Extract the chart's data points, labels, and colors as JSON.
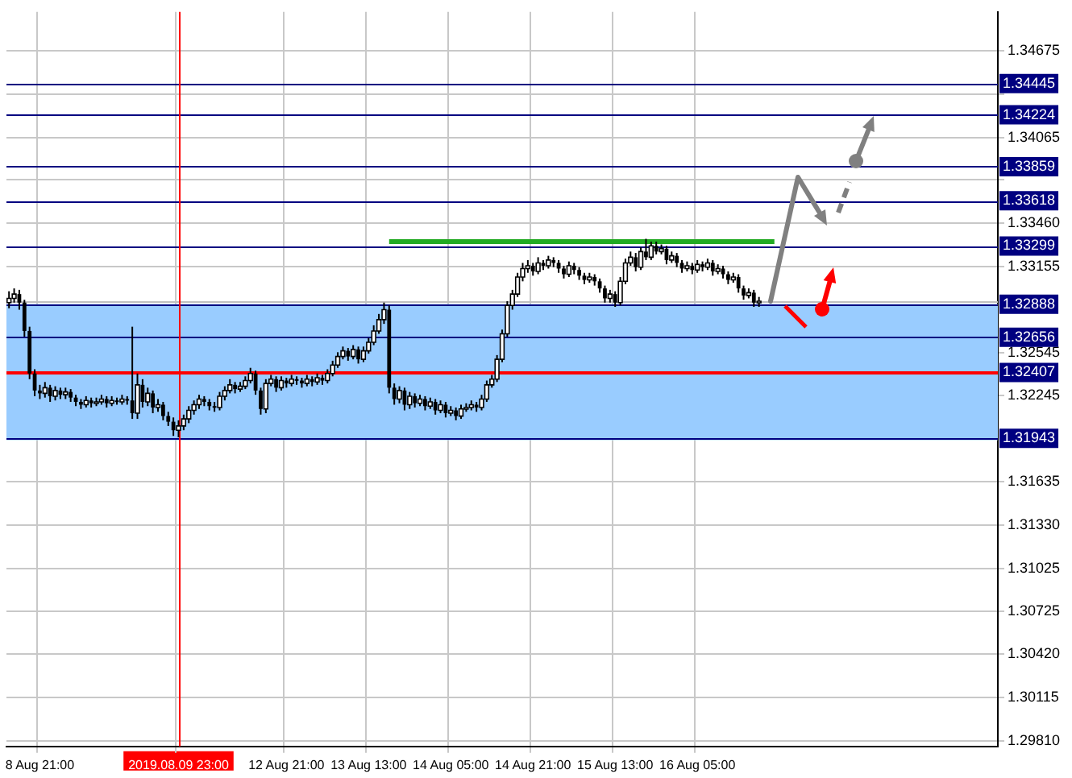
{
  "chart_data": {
    "type": "candlestick",
    "categories": [
      null,
      null,
      null,
      null,
      null,
      null,
      "8 Aug 21:00",
      null,
      null,
      null,
      null,
      null,
      null,
      null,
      null,
      null,
      null,
      null,
      null,
      null,
      null,
      null,
      null,
      null,
      null,
      null,
      null,
      null,
      null,
      null,
      null,
      null,
      null,
      "2019.08.09 23:00",
      null,
      null,
      null,
      null,
      null,
      null,
      null,
      null,
      null,
      null,
      null,
      null,
      null,
      null,
      null,
      null,
      null,
      null,
      null,
      null,
      "12 Aug 21:00",
      null,
      null,
      null,
      null,
      null,
      null,
      null,
      null,
      null,
      null,
      null,
      null,
      null,
      null,
      null,
      "13 Aug 13:00",
      null,
      null,
      null,
      null,
      null,
      null,
      null,
      null,
      null,
      null,
      null,
      null,
      null,
      null,
      null,
      "14 Aug 05:00",
      null,
      null,
      null,
      null,
      null,
      null,
      null,
      null,
      null,
      null,
      null,
      null,
      null,
      null,
      null,
      "14 Aug 21:00",
      null,
      null,
      null,
      null,
      null,
      null,
      null,
      null,
      null,
      null,
      null,
      null,
      null,
      null,
      null,
      "15 Aug 13:00",
      null,
      null,
      null,
      null,
      null,
      null,
      null,
      null,
      null,
      null,
      null,
      null,
      null,
      null,
      null,
      "16 Aug 05:00",
      null,
      null,
      null,
      null,
      null,
      null,
      null,
      null,
      null,
      null,
      null,
      null,
      null,
      null,
      null,
      null,
      null,
      null,
      null,
      null,
      null,
      null,
      null,
      null,
      null,
      null,
      null,
      null,
      null,
      null,
      null,
      null,
      null,
      null,
      null,
      null,
      null,
      null,
      null,
      null,
      null,
      null,
      null,
      null,
      null,
      null,
      null,
      null,
      null,
      null,
      null,
      null,
      null,
      null,
      null,
      null,
      null,
      null
    ],
    "ohlc": [
      [
        1.329,
        1.3298,
        1.3286,
        1.3293
      ],
      [
        1.3293,
        1.33,
        1.329,
        1.3296
      ],
      [
        1.3296,
        1.3299,
        1.3285,
        1.329
      ],
      [
        1.329,
        1.3292,
        1.3266,
        1.327
      ],
      [
        1.327,
        1.3273,
        1.3236,
        1.324
      ],
      [
        1.324,
        1.3243,
        1.3224,
        1.3228
      ],
      [
        1.3228,
        1.3232,
        1.3222,
        1.3226
      ],
      [
        1.3226,
        1.3234,
        1.3223,
        1.323
      ],
      [
        1.323,
        1.3232,
        1.322,
        1.3224
      ],
      [
        1.3224,
        1.3231,
        1.3221,
        1.3228
      ],
      [
        1.3228,
        1.323,
        1.3222,
        1.3225
      ],
      [
        1.3225,
        1.323,
        1.3222,
        1.3227
      ],
      [
        1.3227,
        1.3229,
        1.322,
        1.3223
      ],
      [
        1.3223,
        1.3225,
        1.3217,
        1.322
      ],
      [
        1.322,
        1.3222,
        1.3215,
        1.3218
      ],
      [
        1.3218,
        1.3224,
        1.3216,
        1.3221
      ],
      [
        1.3221,
        1.3223,
        1.3216,
        1.3219
      ],
      [
        1.3219,
        1.3223,
        1.3217,
        1.322
      ],
      [
        1.322,
        1.3225,
        1.3218,
        1.3222
      ],
      [
        1.3222,
        1.3224,
        1.3216,
        1.3219
      ],
      [
        1.3219,
        1.3224,
        1.3217,
        1.3221
      ],
      [
        1.3221,
        1.3223,
        1.3218,
        1.322
      ],
      [
        1.322,
        1.3225,
        1.3218,
        1.3222
      ],
      [
        1.3222,
        1.3224,
        1.3218,
        1.3221
      ],
      [
        1.3221,
        1.3273,
        1.3208,
        1.3212
      ],
      [
        1.3212,
        1.324,
        1.3208,
        1.3232
      ],
      [
        1.3232,
        1.3236,
        1.3216,
        1.322
      ],
      [
        1.322,
        1.323,
        1.3217,
        1.3226
      ],
      [
        1.3226,
        1.3228,
        1.3212,
        1.3216
      ],
      [
        1.3216,
        1.3222,
        1.3213,
        1.3218
      ],
      [
        1.3218,
        1.322,
        1.3207,
        1.321
      ],
      [
        1.321,
        1.3213,
        1.3203,
        1.3206
      ],
      [
        1.3206,
        1.3209,
        1.3196,
        1.32
      ],
      [
        1.32,
        1.3207,
        1.3195,
        1.3203
      ],
      [
        1.3203,
        1.3211,
        1.32,
        1.3208
      ],
      [
        1.3208,
        1.3217,
        1.3205,
        1.3214
      ],
      [
        1.3214,
        1.3221,
        1.3211,
        1.3218
      ],
      [
        1.3218,
        1.3225,
        1.3215,
        1.3222
      ],
      [
        1.3222,
        1.3224,
        1.3217,
        1.322
      ],
      [
        1.322,
        1.3222,
        1.3214,
        1.3217
      ],
      [
        1.3217,
        1.322,
        1.3213,
        1.3216
      ],
      [
        1.3216,
        1.3227,
        1.3214,
        1.3224
      ],
      [
        1.3224,
        1.3231,
        1.3221,
        1.3228
      ],
      [
        1.3228,
        1.3236,
        1.3226,
        1.3232
      ],
      [
        1.3232,
        1.3234,
        1.3226,
        1.3229
      ],
      [
        1.3229,
        1.3234,
        1.3227,
        1.3231
      ],
      [
        1.3231,
        1.3238,
        1.3229,
        1.3235
      ],
      [
        1.3235,
        1.3244,
        1.3233,
        1.324
      ],
      [
        1.324,
        1.3242,
        1.3225,
        1.3228
      ],
      [
        1.3228,
        1.323,
        1.3211,
        1.3215
      ],
      [
        1.3215,
        1.3236,
        1.3212,
        1.3233
      ],
      [
        1.3233,
        1.3239,
        1.3231,
        1.3236
      ],
      [
        1.3236,
        1.3238,
        1.3227,
        1.323
      ],
      [
        1.323,
        1.3238,
        1.3228,
        1.3235
      ],
      [
        1.3235,
        1.3237,
        1.323,
        1.3233
      ],
      [
        1.3233,
        1.3239,
        1.3231,
        1.3236
      ],
      [
        1.3236,
        1.3238,
        1.3232,
        1.3235
      ],
      [
        1.3235,
        1.3237,
        1.323,
        1.3233
      ],
      [
        1.3233,
        1.3239,
        1.3231,
        1.3236
      ],
      [
        1.3236,
        1.3238,
        1.3231,
        1.3234
      ],
      [
        1.3234,
        1.324,
        1.3232,
        1.3237
      ],
      [
        1.3237,
        1.3239,
        1.3232,
        1.3235
      ],
      [
        1.3235,
        1.3243,
        1.3233,
        1.324
      ],
      [
        1.324,
        1.3249,
        1.3238,
        1.3246
      ],
      [
        1.3246,
        1.3255,
        1.3244,
        1.3252
      ],
      [
        1.3252,
        1.3259,
        1.325,
        1.3256
      ],
      [
        1.3256,
        1.3258,
        1.3249,
        1.3252
      ],
      [
        1.3252,
        1.326,
        1.325,
        1.3257
      ],
      [
        1.3257,
        1.3259,
        1.3247,
        1.325
      ],
      [
        1.325,
        1.3259,
        1.3248,
        1.3256
      ],
      [
        1.3256,
        1.3265,
        1.3254,
        1.3262
      ],
      [
        1.3262,
        1.3274,
        1.326,
        1.327
      ],
      [
        1.327,
        1.3282,
        1.3268,
        1.3278
      ],
      [
        1.3278,
        1.329,
        1.3275,
        1.3285
      ],
      [
        1.3285,
        1.3288,
        1.3226,
        1.323
      ],
      [
        1.323,
        1.3233,
        1.3218,
        1.3222
      ],
      [
        1.3222,
        1.3231,
        1.3219,
        1.3228
      ],
      [
        1.3228,
        1.323,
        1.3214,
        1.3218
      ],
      [
        1.3218,
        1.3227,
        1.3215,
        1.3224
      ],
      [
        1.3224,
        1.3226,
        1.3216,
        1.3219
      ],
      [
        1.3219,
        1.3225,
        1.3217,
        1.3222
      ],
      [
        1.3222,
        1.3224,
        1.3214,
        1.3217
      ],
      [
        1.3217,
        1.3223,
        1.3215,
        1.322
      ],
      [
        1.322,
        1.3222,
        1.3211,
        1.3214
      ],
      [
        1.3214,
        1.3221,
        1.3212,
        1.3218
      ],
      [
        1.3218,
        1.322,
        1.3209,
        1.3212
      ],
      [
        1.3212,
        1.3217,
        1.321,
        1.3214
      ],
      [
        1.3214,
        1.3216,
        1.3207,
        1.321
      ],
      [
        1.321,
        1.3218,
        1.3208,
        1.3215
      ],
      [
        1.3215,
        1.3219,
        1.3213,
        1.3216
      ],
      [
        1.3216,
        1.3221,
        1.3214,
        1.3218
      ],
      [
        1.3218,
        1.322,
        1.3213,
        1.3216
      ],
      [
        1.3216,
        1.3225,
        1.3214,
        1.3222
      ],
      [
        1.3222,
        1.3235,
        1.322,
        1.3232
      ],
      [
        1.3232,
        1.3239,
        1.323,
        1.3236
      ],
      [
        1.3236,
        1.3253,
        1.3234,
        1.325
      ],
      [
        1.325,
        1.3271,
        1.3248,
        1.3268
      ],
      [
        1.3268,
        1.3291,
        1.3266,
        1.3288
      ],
      [
        1.3288,
        1.3299,
        1.3285,
        1.3296
      ],
      [
        1.3296,
        1.3311,
        1.3294,
        1.3308
      ],
      [
        1.3308,
        1.3318,
        1.3305,
        1.3314
      ],
      [
        1.3314,
        1.332,
        1.3311,
        1.3316
      ],
      [
        1.3316,
        1.3318,
        1.3309,
        1.3312
      ],
      [
        1.3312,
        1.3322,
        1.331,
        1.3318
      ],
      [
        1.3318,
        1.332,
        1.3313,
        1.3316
      ],
      [
        1.3316,
        1.3323,
        1.3314,
        1.332
      ],
      [
        1.332,
        1.3322,
        1.3315,
        1.3318
      ],
      [
        1.3318,
        1.332,
        1.3311,
        1.3314
      ],
      [
        1.3314,
        1.3316,
        1.3307,
        1.331
      ],
      [
        1.331,
        1.3319,
        1.3308,
        1.3316
      ],
      [
        1.3316,
        1.3318,
        1.331,
        1.3313
      ],
      [
        1.3313,
        1.3315,
        1.3306,
        1.3309
      ],
      [
        1.3309,
        1.3311,
        1.3303,
        1.3306
      ],
      [
        1.3306,
        1.3311,
        1.3304,
        1.3308
      ],
      [
        1.3308,
        1.331,
        1.3302,
        1.3305
      ],
      [
        1.3305,
        1.3307,
        1.3297,
        1.33
      ],
      [
        1.33,
        1.3302,
        1.329,
        1.3293
      ],
      [
        1.3293,
        1.3299,
        1.329,
        1.3296
      ],
      [
        1.3296,
        1.3298,
        1.3287,
        1.329
      ],
      [
        1.329,
        1.3308,
        1.3288,
        1.3305
      ],
      [
        1.3305,
        1.3321,
        1.3303,
        1.3318
      ],
      [
        1.3318,
        1.3326,
        1.3316,
        1.3322
      ],
      [
        1.3322,
        1.3325,
        1.3312,
        1.3315
      ],
      [
        1.3315,
        1.3329,
        1.3313,
        1.3326
      ],
      [
        1.3326,
        1.3335,
        1.332,
        1.3322
      ],
      [
        1.3322,
        1.3333,
        1.332,
        1.333
      ],
      [
        1.333,
        1.3333,
        1.3324,
        1.3326
      ],
      [
        1.3326,
        1.3331,
        1.3324,
        1.3328
      ],
      [
        1.3328,
        1.333,
        1.3317,
        1.332
      ],
      [
        1.332,
        1.3326,
        1.3318,
        1.3323
      ],
      [
        1.3323,
        1.3325,
        1.3315,
        1.3318
      ],
      [
        1.3318,
        1.332,
        1.3311,
        1.3314
      ],
      [
        1.3314,
        1.3319,
        1.3312,
        1.3316
      ],
      [
        1.3316,
        1.3318,
        1.331,
        1.3313
      ],
      [
        1.3313,
        1.332,
        1.3311,
        1.3317
      ],
      [
        1.3317,
        1.3319,
        1.3312,
        1.3315
      ],
      [
        1.3315,
        1.3321,
        1.3313,
        1.3318
      ],
      [
        1.3318,
        1.332,
        1.3309,
        1.3312
      ],
      [
        1.3312,
        1.3317,
        1.331,
        1.3314
      ],
      [
        1.3314,
        1.3316,
        1.3307,
        1.331
      ],
      [
        1.331,
        1.3312,
        1.3303,
        1.3306
      ],
      [
        1.3306,
        1.3311,
        1.3304,
        1.3308
      ],
      [
        1.3308,
        1.331,
        1.3297,
        1.33
      ],
      [
        1.33,
        1.3302,
        1.3292,
        1.3295
      ],
      [
        1.3295,
        1.33,
        1.3293,
        1.3297
      ],
      [
        1.3297,
        1.3299,
        1.3287,
        1.329
      ],
      [
        1.329,
        1.3294,
        1.3287,
        1.3291
      ],
      null,
      null,
      null,
      null,
      null,
      null,
      null,
      null,
      null,
      null,
      null,
      null,
      null,
      null,
      null,
      null,
      null,
      null,
      null,
      null,
      null,
      null,
      null,
      null,
      null,
      null,
      null,
      null,
      null,
      null,
      null,
      null,
      null,
      null,
      null,
      null,
      null,
      null,
      null,
      null,
      null,
      null,
      null,
      null,
      null,
      null
    ],
    "series": [
      {
        "type": "line",
        "color": "#22aa22",
        "values": [
          null,
          null,
          null,
          null,
          null,
          null,
          null,
          null,
          null,
          null,
          null,
          null,
          null,
          null,
          null,
          null,
          null,
          null,
          null,
          null,
          null,
          null,
          null,
          null,
          null,
          null,
          null,
          null,
          null,
          null,
          null,
          null,
          null,
          null,
          null,
          null,
          null,
          null,
          null,
          null,
          null,
          null,
          null,
          null,
          null,
          null,
          null,
          null,
          null,
          null,
          null,
          null,
          null,
          null,
          null,
          null,
          null,
          null,
          null,
          null,
          null,
          null,
          null,
          null,
          null,
          null,
          null,
          null,
          null,
          null,
          null,
          null,
          null,
          null,
          1.3333,
          1.3333,
          1.3333,
          1.3333,
          1.3333,
          1.3333,
          1.3333,
          1.3333,
          1.3333,
          1.3333,
          1.3333,
          1.3333,
          1.3333,
          1.3333,
          1.3333,
          1.3333,
          1.3333,
          1.3333,
          1.3333,
          1.3333,
          1.3333,
          1.3333,
          1.3333,
          1.3333,
          1.3333,
          1.3333,
          1.3333,
          1.3333,
          1.3333,
          1.3333,
          1.3333,
          1.3333,
          1.3333,
          1.3333,
          1.3333,
          1.3333,
          1.3333,
          1.3333,
          1.3333,
          1.3333,
          1.3333,
          1.3333,
          1.3333,
          1.3333,
          1.3333,
          1.3333,
          1.3333,
          1.3333,
          1.3333,
          1.3333,
          1.3333,
          1.3333,
          1.3333,
          1.3333,
          1.3333,
          1.3333,
          1.3333,
          1.3333,
          1.3333,
          1.3333,
          1.3333,
          1.3333,
          1.3333,
          1.3333,
          1.3333,
          1.3333,
          1.3333,
          1.3333,
          1.3333,
          1.3333,
          1.3333,
          1.3333,
          1.3333,
          1.3333,
          1.3333,
          1.3333,
          null,
          null,
          null,
          null,
          null,
          null,
          null,
          null,
          null,
          null,
          null,
          null,
          null,
          null,
          null,
          null,
          null,
          null,
          null,
          null,
          null,
          null,
          null,
          null,
          null,
          null,
          null,
          null,
          null,
          null,
          null,
          null,
          null,
          null,
          null,
          null,
          null,
          null,
          null,
          null,
          null,
          null,
          null
        ]
      }
    ],
    "ylim": [
      1.2977,
      1.3495
    ],
    "yticks": [
      {
        "value": 1.2981,
        "label": "1.29810"
      },
      1.30115,
      {
        "value": 1.3042,
        "label": "1.30420"
      },
      1.30725,
      1.31025,
      {
        "value": 1.3133,
        "label": "1.31330"
      },
      1.31635,
      1.32245,
      1.32545,
      1.33155,
      {
        "value": 1.3346,
        "label": "1.33460"
      },
      {
        "value": 1.33765,
        "label": null
      },
      1.34065,
      {
        "value": 1.3437,
        "label": null
      },
      1.34675
    ],
    "grid": true,
    "marker": "none",
    "ref_lines": [
      {
        "axis": "y",
        "value": 1.34445,
        "label": "1.34445",
        "color": "#000080"
      },
      {
        "axis": "y",
        "value": 1.34224,
        "label": "1.34224",
        "color": "#000080"
      },
      {
        "axis": "y",
        "value": 1.33859,
        "label": "1.33859",
        "color": "#000080"
      },
      {
        "axis": "y",
        "value": 1.33618,
        "label": "1.33618",
        "color": "#000080"
      },
      {
        "axis": "y",
        "value": 1.33299,
        "label": "1.33299",
        "color": "#000080"
      },
      {
        "axis": "y",
        "value": 1.3291,
        "color": "#c0c0c0"
      },
      {
        "axis": "y",
        "value": 1.32888,
        "label": "1.32888",
        "color": "#000080"
      },
      {
        "axis": "y",
        "value": 1.32656,
        "label": "1.32656",
        "color": "#000080"
      },
      {
        "axis": "y",
        "value": 1.32407,
        "label": "1.32407",
        "color": "#ff0000"
      },
      {
        "axis": "y",
        "value": 1.31943,
        "label": "1.31943",
        "color": "#000080"
      },
      {
        "axis": "x",
        "value": "2019.08.09 23:00",
        "color": "#ff0000"
      }
    ],
    "bands": [
      {
        "axis": "y",
        "from": 1.3193,
        "to": 1.3289,
        "color": "#99ccff"
      }
    ]
  }
}
